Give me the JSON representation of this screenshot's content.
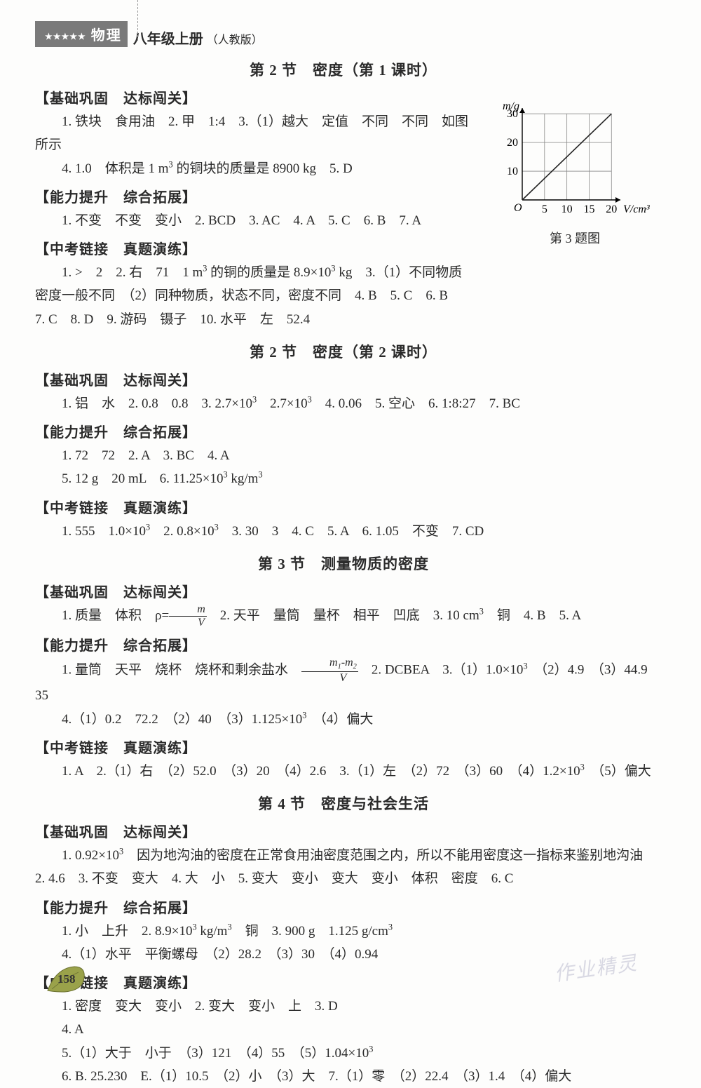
{
  "header": {
    "stars": "★★★★★",
    "subject": "物理",
    "grade": "八年级上册",
    "edition": "（人教版）"
  },
  "chart": {
    "type": "line",
    "y_label": "m/g",
    "x_label": "V/cm³",
    "x_ticks": [
      5,
      10,
      15,
      20
    ],
    "y_ticks": [
      10,
      20,
      30
    ],
    "xlim": [
      0,
      22
    ],
    "ylim": [
      0,
      32
    ],
    "origin_label": "O",
    "points": [
      [
        0,
        0
      ],
      [
        20,
        30
      ]
    ],
    "line_color": "#222222",
    "grid_color": "#888888",
    "grid_on": true,
    "line_width": 1.6,
    "bg": "#fdfdfc",
    "font_size": 16,
    "caption": "第 3 题图"
  },
  "sections": [
    {
      "title": "第 2 节　密度（第 1 课时）",
      "blocks": [
        {
          "head": "【基础巩固　达标闯关】",
          "lines": [
            "1. 铁块　食用油　2. 甲　1:4　3.（1）越大　定值　不同　不同　如图所示",
            "4. 1.0　体积是 1 m³ 的铜块的质量是 8900 kg　5. D"
          ]
        },
        {
          "head": "【能力提升　综合拓展】",
          "lines": [
            "1. 不变　不变　变小　2. BCD　3. AC　4. A　5. C　6. B　7. A"
          ]
        },
        {
          "head": "【中考链接　真题演练】",
          "lines": [
            "1. >　2　2. 右　71　1 m³ 的铜的质量是 8.9×10³ kg　3.（1）不同物质密度一般不同　（2）同种物质，状态不同，密度不同　4. B　5. C　6. B　7. C　8. D　9. 游码　镊子　10. 水平　左　52.4"
          ]
        }
      ]
    },
    {
      "title": "第 2 节　密度（第 2 课时）",
      "blocks": [
        {
          "head": "【基础巩固　达标闯关】",
          "lines": [
            "1. 铝　水　2. 0.8　0.8　3. 2.7×10³　2.7×10³　4. 0.06　5. 空心　6. 1:8:27　7. BC"
          ]
        },
        {
          "head": "【能力提升　综合拓展】",
          "lines": [
            "1. 72　72　2. A　3. BC　4. A",
            "5. 12 g　20 mL　6. 11.25×10³ kg/m³"
          ]
        },
        {
          "head": "【中考链接　真题演练】",
          "lines": [
            "1. 555　1.0×10³　2. 0.8×10³　3. 30　3　4. C　5. A　6. 1.05　不变　7. CD"
          ]
        }
      ]
    },
    {
      "title": "第 3 节　测量物质的密度",
      "blocks": [
        {
          "head": "【基础巩固　达标闯关】",
          "lines": [
            "1. 质量　体积　ρ={FRAC:m|V}　2. 天平　量筒　量杯　相平　凹底　3. 10 cm³　铜　4. B　5. A"
          ]
        },
        {
          "head": "【能力提升　综合拓展】",
          "lines": [
            "1. 量筒　天平　烧杯　烧杯和剩余盐水　{FRAC:m₁-m₂|V}　2. DCBEA　3.（1）1.0×10³　（2）4.9　（3）44.9　35",
            "4.（1）0.2　72.2　（2）40　（3）1.125×10³　（4）偏大"
          ]
        },
        {
          "head": "【中考链接　真题演练】",
          "lines": [
            "1. A　2.（1）右　（2）52.0　（3）20　（4）2.6　3.（1）左　（2）72　（3）60　（4）1.2×10³　（5）偏大"
          ]
        }
      ]
    },
    {
      "title": "第 4 节　密度与社会生活",
      "blocks": [
        {
          "head": "【基础巩固　达标闯关】",
          "lines": [
            "1. 0.92×10³　因为地沟油的密度在正常食用油密度范围之内，所以不能用密度这一指标来鉴别地沟油　2. 4.6　3. 不变　变大　4. 大　小　5. 变大　变小　变大　变小　体积　密度　6. C"
          ]
        },
        {
          "head": "【能力提升　综合拓展】",
          "lines": [
            "1. 小　上升　2. 8.9×10³ kg/m³　铜　3. 900 g　1.125 g/cm³",
            "4.（1）水平　平衡螺母　（2）28.2　（3）30　（4）0.94"
          ]
        },
        {
          "head": "【中考链接　真题演练】",
          "lines": [
            "1. 密度　变大　变小　2. 变大　变小　上　3. D",
            "4. A",
            "5.（1）大于　小于　（3）121　（4）55　（5）1.04×10³",
            "6. B. 25.230　E.（1）10.5　（2）小　（3）大　7.（1）零　（2）22.4　（3）1.4　（4）偏大"
          ]
        }
      ]
    }
  ],
  "page_number": "158",
  "watermark": "作业精灵"
}
